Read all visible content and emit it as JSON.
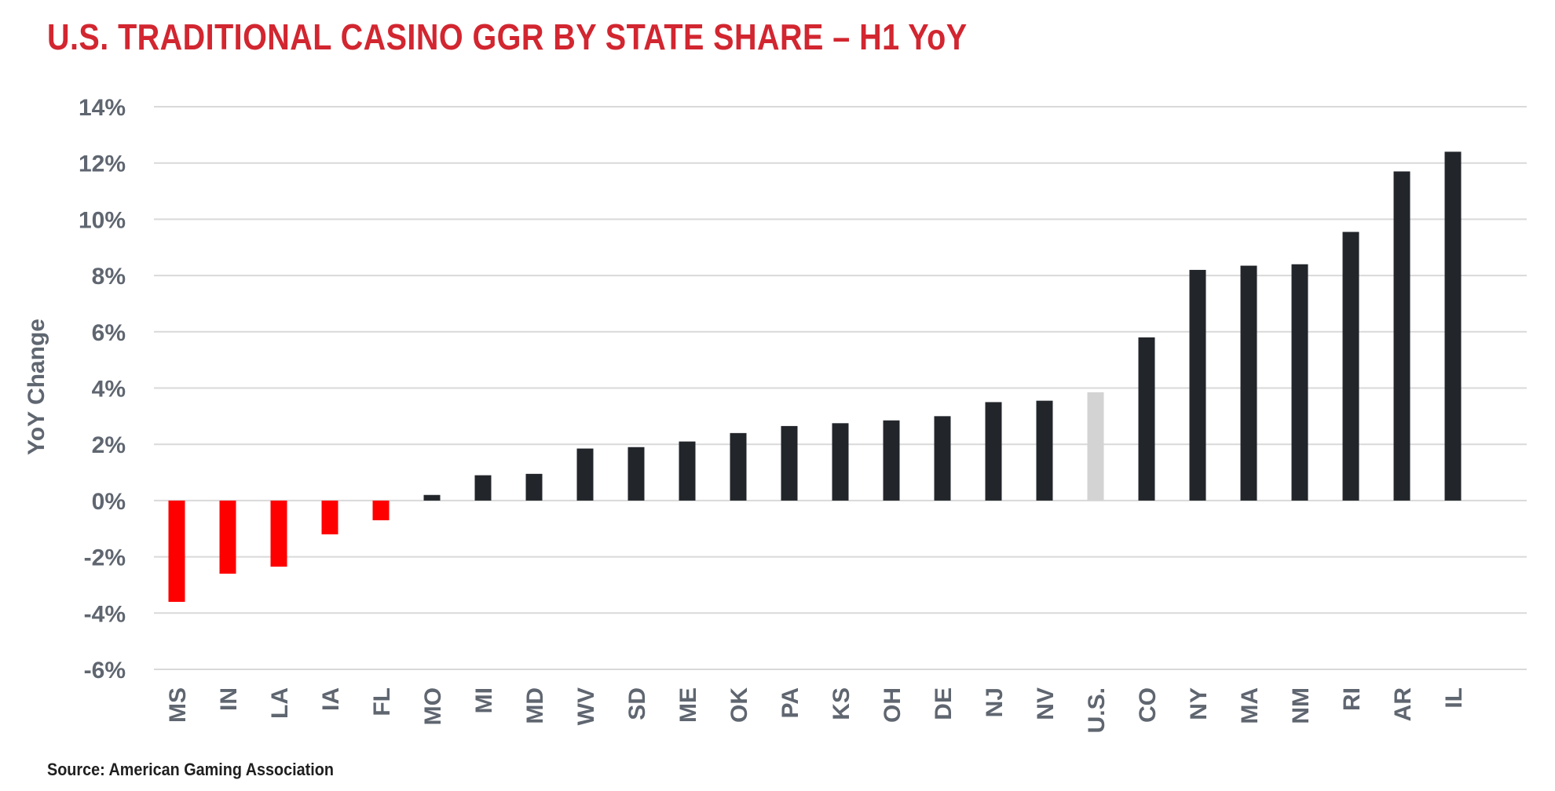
{
  "title": "U.S. TRADITIONAL CASINO GGR BY STATE SHARE – H1 YoY",
  "source": "Source: American Gaming Association",
  "colors": {
    "title": "#d22630",
    "negative": "#ff0000",
    "positive": "#22262b",
    "us": "#d3d3d3",
    "grid": "#d9d9d9",
    "tick_text": "#5f6670"
  },
  "chart_data": {
    "type": "bar",
    "title": "U.S. TRADITIONAL CASINO GGR BY STATE SHARE – H1 YoY",
    "xlabel": "",
    "ylabel": "YoY Change",
    "ylim": [
      -6,
      14
    ],
    "yticks": [
      14,
      12,
      10,
      8,
      6,
      4,
      2,
      0,
      -2,
      -4,
      -6
    ],
    "ytick_labels": [
      "14%",
      "12%",
      "10%",
      "8%",
      "6%",
      "4%",
      "2%",
      "0%",
      "-2%",
      "-4%",
      "-6%"
    ],
    "grid": true,
    "legend": "none",
    "categories": [
      "MS",
      "IN",
      "LA",
      "IA",
      "FL",
      "MO",
      "MI",
      "MD",
      "WV",
      "SD",
      "ME",
      "OK",
      "PA",
      "KS",
      "OH",
      "DE",
      "NJ",
      "NV",
      "U.S.",
      "CO",
      "NY",
      "MA",
      "NM",
      "RI",
      "AR",
      "IL"
    ],
    "values": [
      -3.6,
      -2.6,
      -2.35,
      -1.2,
      -0.7,
      0.2,
      0.9,
      0.95,
      1.85,
      1.9,
      2.1,
      2.4,
      2.65,
      2.75,
      2.85,
      3.0,
      3.5,
      3.55,
      3.85,
      5.8,
      8.2,
      8.35,
      8.4,
      9.55,
      11.7,
      12.4
    ]
  }
}
